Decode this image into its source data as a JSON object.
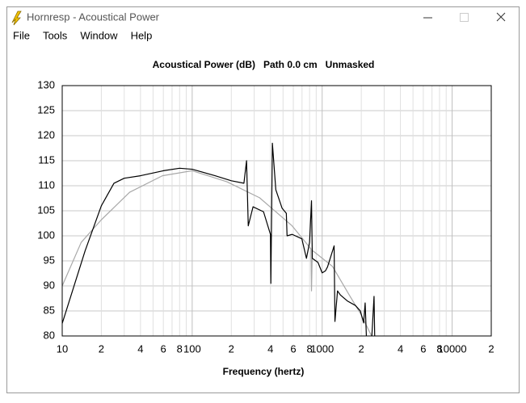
{
  "window": {
    "title": "Hornresp - Acoustical Power",
    "menu": [
      "File",
      "Tools",
      "Window",
      "Help"
    ]
  },
  "chart_data": {
    "type": "line",
    "title": "Acoustical Power (dB)   Path 0.0 cm   Unmasked",
    "x_label": "Frequency (hertz)",
    "xscale": "log",
    "grid": true,
    "xlim": [
      10,
      20000
    ],
    "ylim": [
      80,
      130
    ],
    "xticks": [
      10,
      {
        "value": 20,
        "label": "2"
      },
      {
        "value": 30,
        "label": null
      },
      {
        "value": 40,
        "label": "4"
      },
      {
        "value": 50,
        "label": null
      },
      {
        "value": 60,
        "label": "6"
      },
      {
        "value": 70,
        "label": null
      },
      {
        "value": 80,
        "label": "8"
      },
      {
        "value": 90,
        "label": null
      },
      100,
      {
        "value": 200,
        "label": "2"
      },
      {
        "value": 300,
        "label": null
      },
      {
        "value": 400,
        "label": "4"
      },
      {
        "value": 500,
        "label": null
      },
      {
        "value": 600,
        "label": "6"
      },
      {
        "value": 700,
        "label": null
      },
      {
        "value": 800,
        "label": "8"
      },
      {
        "value": 900,
        "label": null
      },
      1000,
      {
        "value": 2000,
        "label": "2"
      },
      {
        "value": 3000,
        "label": null
      },
      {
        "value": 4000,
        "label": "4"
      },
      {
        "value": 5000,
        "label": null
      },
      {
        "value": 6000,
        "label": "6"
      },
      {
        "value": 7000,
        "label": null
      },
      {
        "value": 8000,
        "label": "8"
      },
      {
        "value": 9000,
        "label": null
      },
      10000,
      {
        "value": 20000,
        "label": "2"
      }
    ],
    "yticks": [
      80,
      85,
      90,
      95,
      100,
      105,
      110,
      115,
      120,
      125,
      130
    ],
    "series": [
      {
        "color": "#a8a8a8",
        "x": [
          10,
          14,
          20,
          33,
          59,
          100,
          185,
          330,
          587,
          820,
          828,
          840,
          1200,
          1615,
          2000,
          2400
        ],
        "values": [
          90,
          98.7,
          103.2,
          108.7,
          112,
          113,
          110.8,
          107.6,
          102,
          97.4,
          89,
          97.1,
          93.9,
          88.2,
          84.2,
          80
        ]
      },
      {
        "color": "#000000",
        "x": [
          10,
          15,
          20,
          25,
          30,
          40,
          60,
          80,
          100,
          150,
          200,
          250,
          262,
          270,
          294,
          354,
          400,
          403,
          414,
          440,
          492,
          530,
          537,
          587,
          698,
          757,
          800,
          828,
          840,
          928,
          1000,
          1060,
          1100,
          1236,
          1254,
          1313,
          1380,
          1561,
          1800,
          1967,
          2085,
          2142,
          2196,
          2400,
          2507,
          2540
        ],
        "values": [
          82.5,
          97,
          106,
          110.5,
          111.5,
          112,
          113,
          113.5,
          113.3,
          112,
          111,
          110.5,
          115,
          102,
          105.8,
          104.8,
          100.3,
          90.5,
          118.5,
          109.2,
          105.5,
          104.5,
          100,
          100.3,
          99.4,
          95.5,
          98.7,
          107,
          95.5,
          94.7,
          92.6,
          93,
          93.8,
          98,
          82.9,
          89,
          88.2,
          87,
          86.1,
          85,
          82.6,
          86.6,
          79,
          79,
          87.9,
          79
        ]
      }
    ]
  }
}
